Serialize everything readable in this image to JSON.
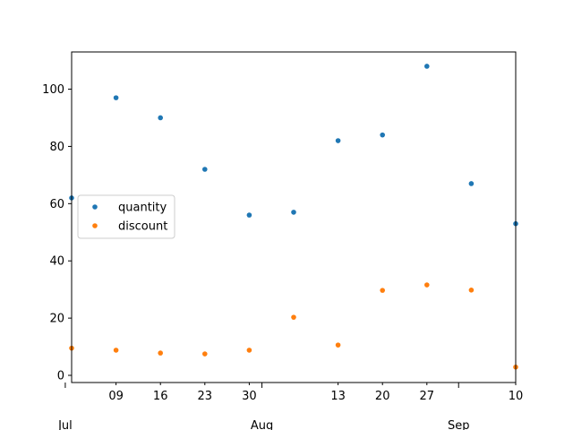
{
  "chart_data": {
    "type": "scatter",
    "title": "",
    "xlabel": "",
    "ylabel": "",
    "x": [
      "2023-07-02",
      "2023-07-09",
      "2023-07-16",
      "2023-07-23",
      "2023-07-30",
      "2023-08-06",
      "2023-08-13",
      "2023-08-20",
      "2023-08-27",
      "2023-09-03",
      "2023-09-10"
    ],
    "series": [
      {
        "name": "quantity",
        "color": "#1f77b4",
        "values": [
          62,
          97,
          90,
          72,
          56,
          57,
          82,
          84,
          108,
          67,
          53
        ]
      },
      {
        "name": "discount",
        "color": "#ff7f0e",
        "values": [
          9.5,
          8.8,
          7.8,
          7.5,
          8.8,
          20.3,
          10.6,
          29.7,
          31.6,
          29.8,
          2.9
        ]
      }
    ],
    "xlim": [
      "2023-07-02",
      "2023-09-10"
    ],
    "ylim": [
      -2.5,
      113
    ],
    "y_ticks": [
      0,
      20,
      40,
      60,
      80,
      100
    ],
    "x_minor_ticks": [
      {
        "date": "2023-07-09",
        "label": "09"
      },
      {
        "date": "2023-07-16",
        "label": "16"
      },
      {
        "date": "2023-07-23",
        "label": "23"
      },
      {
        "date": "2023-07-30",
        "label": "30"
      },
      {
        "date": "2023-08-13",
        "label": "13"
      },
      {
        "date": "2023-08-20",
        "label": "20"
      },
      {
        "date": "2023-08-27",
        "label": "27"
      },
      {
        "date": "2023-09-10",
        "label": "10"
      }
    ],
    "x_major_ticks": [
      {
        "date": "2023-07-01",
        "label": "Jul"
      },
      {
        "date": "2023-08-01",
        "label": "Aug"
      },
      {
        "date": "2023-09-01",
        "label": "Sep"
      }
    ],
    "grid": false,
    "legend": "center-left"
  }
}
